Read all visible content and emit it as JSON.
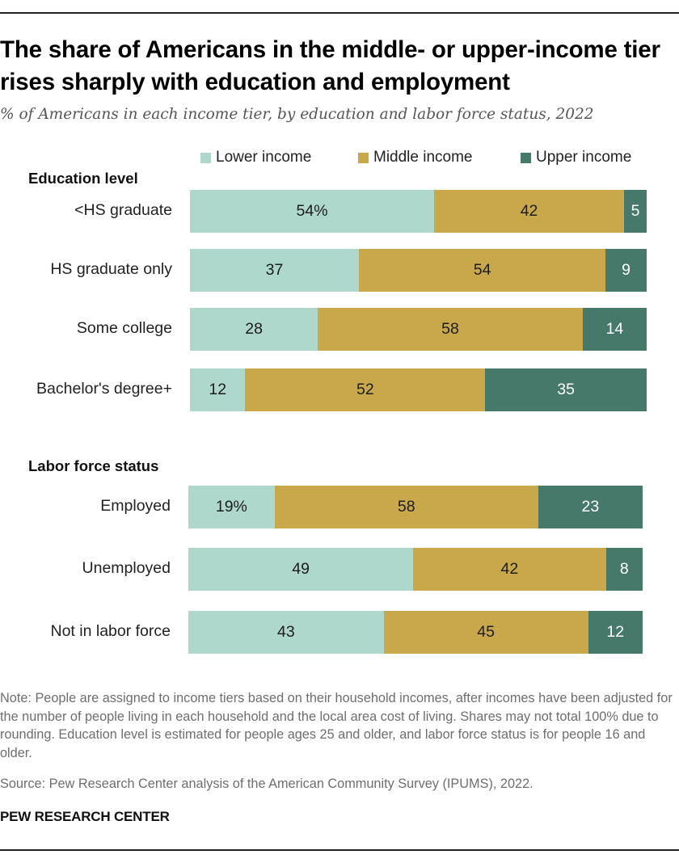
{
  "title": "The share of Americans in the middle- or upper-income tier rises sharply with education and employment",
  "subtitle": "% of Americans in each income tier, by education and labor force status, 2022",
  "legend": [
    {
      "label": "Lower income",
      "color": "#aed8cb"
    },
    {
      "label": "Middle income",
      "color": "#c9a84b"
    },
    {
      "label": "Upper income",
      "color": "#47796b"
    }
  ],
  "chart_data": {
    "type": "bar",
    "orientation": "horizontal",
    "stacked": true,
    "legend_position": "top-right",
    "grid": false,
    "series_names": [
      "Lower income",
      "Middle income",
      "Upper income"
    ],
    "groups": [
      {
        "name": "Education level",
        "rows": [
          {
            "label": "<HS graduate",
            "values": [
              54,
              42,
              5
            ],
            "labels": [
              "54%",
              "42",
              "5"
            ]
          },
          {
            "label": "HS graduate only",
            "values": [
              37,
              54,
              9
            ],
            "labels": [
              "37",
              "54",
              "9"
            ]
          },
          {
            "label": "Some college",
            "values": [
              28,
              58,
              14
            ],
            "labels": [
              "28",
              "58",
              "14"
            ]
          },
          {
            "label": "Bachelor's degree+",
            "values": [
              12,
              52,
              35
            ],
            "labels": [
              "12",
              "52",
              "35"
            ]
          }
        ]
      },
      {
        "name": "Labor force status",
        "rows": [
          {
            "label": "Employed",
            "values": [
              19,
              58,
              23
            ],
            "labels": [
              "19%",
              "58",
              "23"
            ]
          },
          {
            "label": "Unemployed",
            "values": [
              49,
              42,
              8
            ],
            "labels": [
              "49",
              "42",
              "8"
            ]
          },
          {
            "label": "Not in labor force",
            "values": [
              43,
              45,
              12
            ],
            "labels": [
              "43",
              "45",
              "12"
            ]
          }
        ]
      }
    ]
  },
  "note": "Note: People are assigned to income tiers based on their household incomes, after incomes have been adjusted for the number of people living in each household and the local area cost of living. Shares may not total 100% due to rounding. Education level is estimated for people ages 25 and older, and labor force status is for people 16 and older.",
  "source": "Source: Pew Research Center analysis of the American Community Survey (IPUMS), 2022.",
  "brand": "PEW RESEARCH CENTER"
}
